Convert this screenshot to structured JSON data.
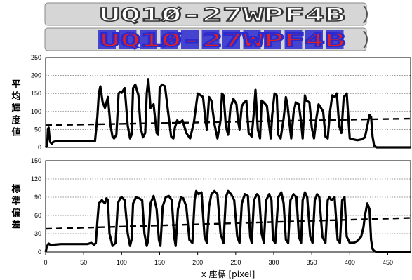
{
  "plates": {
    "top_text": "UQ1Ø-27WPF4B",
    "bottom_text": "UQ1Ø-27WPF4B"
  },
  "colors": {
    "plate_red": "#e02020",
    "plate_blue": "#2a2ad0",
    "plate_gray": "#c8c8c8",
    "line": "#000000"
  },
  "chart_data": [
    {
      "type": "line",
      "ylabel": "平均輝度値",
      "xlabel": "",
      "xlim": [
        0,
        480
      ],
      "ylim": [
        0,
        250
      ],
      "xticks": [
        0,
        50,
        100,
        150,
        200,
        250,
        300,
        350,
        400,
        450
      ],
      "yticks": [
        0,
        50,
        100,
        150,
        200,
        250
      ],
      "grid": "horizontal-dotted",
      "series": [
        {
          "style": "solid",
          "x": [
            0,
            2,
            3,
            4,
            5,
            6,
            8,
            10,
            15,
            25,
            40,
            55,
            65,
            68,
            70,
            72,
            75,
            78,
            82,
            85,
            88,
            90,
            93,
            96,
            98,
            100,
            104,
            108,
            111,
            113,
            115,
            118,
            122,
            125,
            128,
            131,
            133,
            135,
            138,
            142,
            146,
            148,
            150,
            153,
            157,
            161,
            165,
            168,
            170,
            173,
            176,
            180,
            185,
            190,
            195,
            200,
            204,
            207,
            210,
            212,
            215,
            218,
            222,
            226,
            230,
            232,
            234,
            237,
            240,
            243,
            247,
            251,
            253,
            255,
            258,
            261,
            264,
            267,
            271,
            274,
            276,
            279,
            282,
            284,
            287,
            291,
            294,
            296,
            298,
            301,
            304,
            306,
            309,
            313,
            316,
            318,
            321,
            323,
            326,
            329,
            333,
            336,
            338,
            341,
            343,
            347,
            350,
            353,
            356,
            359,
            362,
            365,
            368,
            371,
            374,
            377,
            380,
            383,
            386,
            389,
            392,
            396,
            400,
            405,
            410,
            415,
            420,
            423,
            426,
            428,
            430,
            432,
            435,
            440,
            450,
            460,
            470,
            480
          ],
          "y": [
            0,
            5,
            50,
            55,
            30,
            15,
            10,
            15,
            18,
            18,
            18,
            18,
            18,
            85,
            150,
            170,
            125,
            110,
            140,
            65,
            30,
            25,
            35,
            150,
            155,
            152,
            165,
            60,
            25,
            35,
            165,
            175,
            145,
            55,
            28,
            40,
            150,
            190,
            110,
            120,
            40,
            35,
            165,
            175,
            170,
            100,
            30,
            25,
            55,
            75,
            68,
            75,
            40,
            25,
            70,
            150,
            145,
            140,
            80,
            50,
            140,
            130,
            65,
            25,
            75,
            150,
            145,
            60,
            35,
            110,
            135,
            120,
            75,
            50,
            115,
            125,
            130,
            40,
            30,
            100,
            160,
            50,
            25,
            130,
            125,
            115,
            60,
            25,
            90,
            150,
            145,
            35,
            25,
            80,
            140,
            120,
            60,
            25,
            95,
            125,
            120,
            70,
            25,
            145,
            130,
            125,
            55,
            25,
            80,
            120,
            110,
            100,
            30,
            25,
            100,
            145,
            140,
            150,
            60,
            40,
            140,
            150,
            25,
            22,
            20,
            22,
            28,
            60,
            90,
            85,
            30,
            5,
            0,
            0,
            0,
            0,
            0,
            0
          ]
        },
        {
          "style": "dashed",
          "x": [
            0,
            480
          ],
          "y": [
            62,
            80
          ]
        }
      ]
    },
    {
      "type": "line",
      "ylabel": "標準偏差",
      "xlabel": "x 座標 [pixel]",
      "xlim": [
        0,
        480
      ],
      "ylim": [
        0,
        150
      ],
      "xticks": [
        0,
        50,
        100,
        150,
        200,
        250,
        300,
        350,
        400,
        450
      ],
      "yticks": [
        0,
        30,
        60,
        90,
        120,
        150
      ],
      "grid": "horizontal-dotted",
      "series": [
        {
          "style": "solid",
          "x": [
            0,
            2,
            4,
            6,
            10,
            20,
            40,
            55,
            60,
            64,
            66,
            68,
            70,
            74,
            78,
            80,
            82,
            84,
            88,
            92,
            95,
            98,
            100,
            104,
            108,
            111,
            113,
            115,
            119,
            123,
            127,
            130,
            133,
            135,
            138,
            142,
            146,
            149,
            151,
            154,
            158,
            162,
            166,
            169,
            171,
            174,
            178,
            181,
            185,
            189,
            193,
            196,
            198,
            201,
            205,
            209,
            212,
            215,
            218,
            222,
            226,
            230,
            234,
            237,
            240,
            244,
            248,
            252,
            255,
            258,
            262,
            266,
            269,
            271,
            274,
            278,
            281,
            284,
            287,
            290,
            294,
            297,
            299,
            302,
            306,
            310,
            313,
            316,
            319,
            322,
            326,
            330,
            333,
            336,
            338,
            341,
            344,
            348,
            351,
            354,
            357,
            360,
            364,
            368,
            371,
            373,
            376,
            380,
            384,
            387,
            390,
            393,
            396,
            400,
            405,
            410,
            415,
            418,
            420,
            423,
            426,
            428,
            430,
            432,
            435,
            440,
            450,
            460,
            470,
            480
          ],
          "y": [
            0,
            10,
            14,
            12,
            12,
            13,
            13,
            13,
            15,
            12,
            15,
            50,
            80,
            85,
            80,
            88,
            85,
            30,
            10,
            15,
            80,
            88,
            90,
            85,
            30,
            10,
            20,
            80,
            90,
            88,
            85,
            30,
            10,
            20,
            80,
            92,
            70,
            20,
            10,
            75,
            90,
            92,
            85,
            25,
            10,
            70,
            90,
            88,
            75,
            20,
            15,
            85,
            100,
            95,
            98,
            25,
            15,
            75,
            95,
            100,
            95,
            30,
            15,
            90,
            100,
            95,
            85,
            25,
            15,
            80,
            95,
            92,
            25,
            15,
            85,
            95,
            90,
            30,
            15,
            85,
            95,
            85,
            20,
            15,
            90,
            98,
            80,
            20,
            15,
            85,
            95,
            90,
            25,
            15,
            85,
            98,
            90,
            25,
            15,
            85,
            95,
            90,
            25,
            15,
            85,
            90,
            85,
            90,
            20,
            15,
            85,
            90,
            25,
            15,
            15,
            18,
            25,
            40,
            60,
            80,
            70,
            20,
            5,
            2,
            0,
            0,
            0,
            0,
            0,
            0
          ]
        },
        {
          "style": "dashed",
          "x": [
            0,
            480
          ],
          "y": [
            38,
            56
          ]
        }
      ]
    }
  ]
}
